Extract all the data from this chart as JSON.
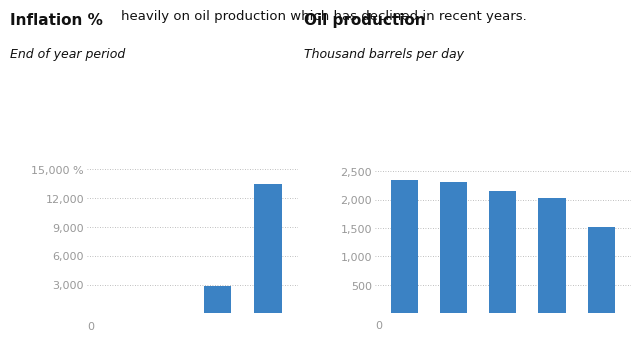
{
  "header_text": "heavily on oil production which has declined in recent years.",
  "left_title": "Inflation %",
  "left_subtitle": "End of year period",
  "right_title": "Oil production",
  "right_subtitle": "Thousand barrels per day",
  "inflation_values": [
    0,
    0,
    2800,
    13500
  ],
  "oil_values": [
    2350,
    2300,
    2150,
    2020,
    1520
  ],
  "bar_color": "#3b82c4",
  "inflation_ylim": [
    0,
    16000
  ],
  "oil_ylim": [
    0,
    2700
  ],
  "inflation_yticks": [
    0,
    3000,
    6000,
    9000,
    12000,
    15000
  ],
  "oil_yticks": [
    0,
    500,
    1000,
    1500,
    2000,
    2500
  ],
  "bg_color": "#ffffff",
  "text_color": "#111111",
  "tick_color": "#999999",
  "grid_color": "#aaaaaa",
  "title_fontsize": 11,
  "subtitle_fontsize": 9,
  "tick_fontsize": 8,
  "header_fontsize": 9.5
}
